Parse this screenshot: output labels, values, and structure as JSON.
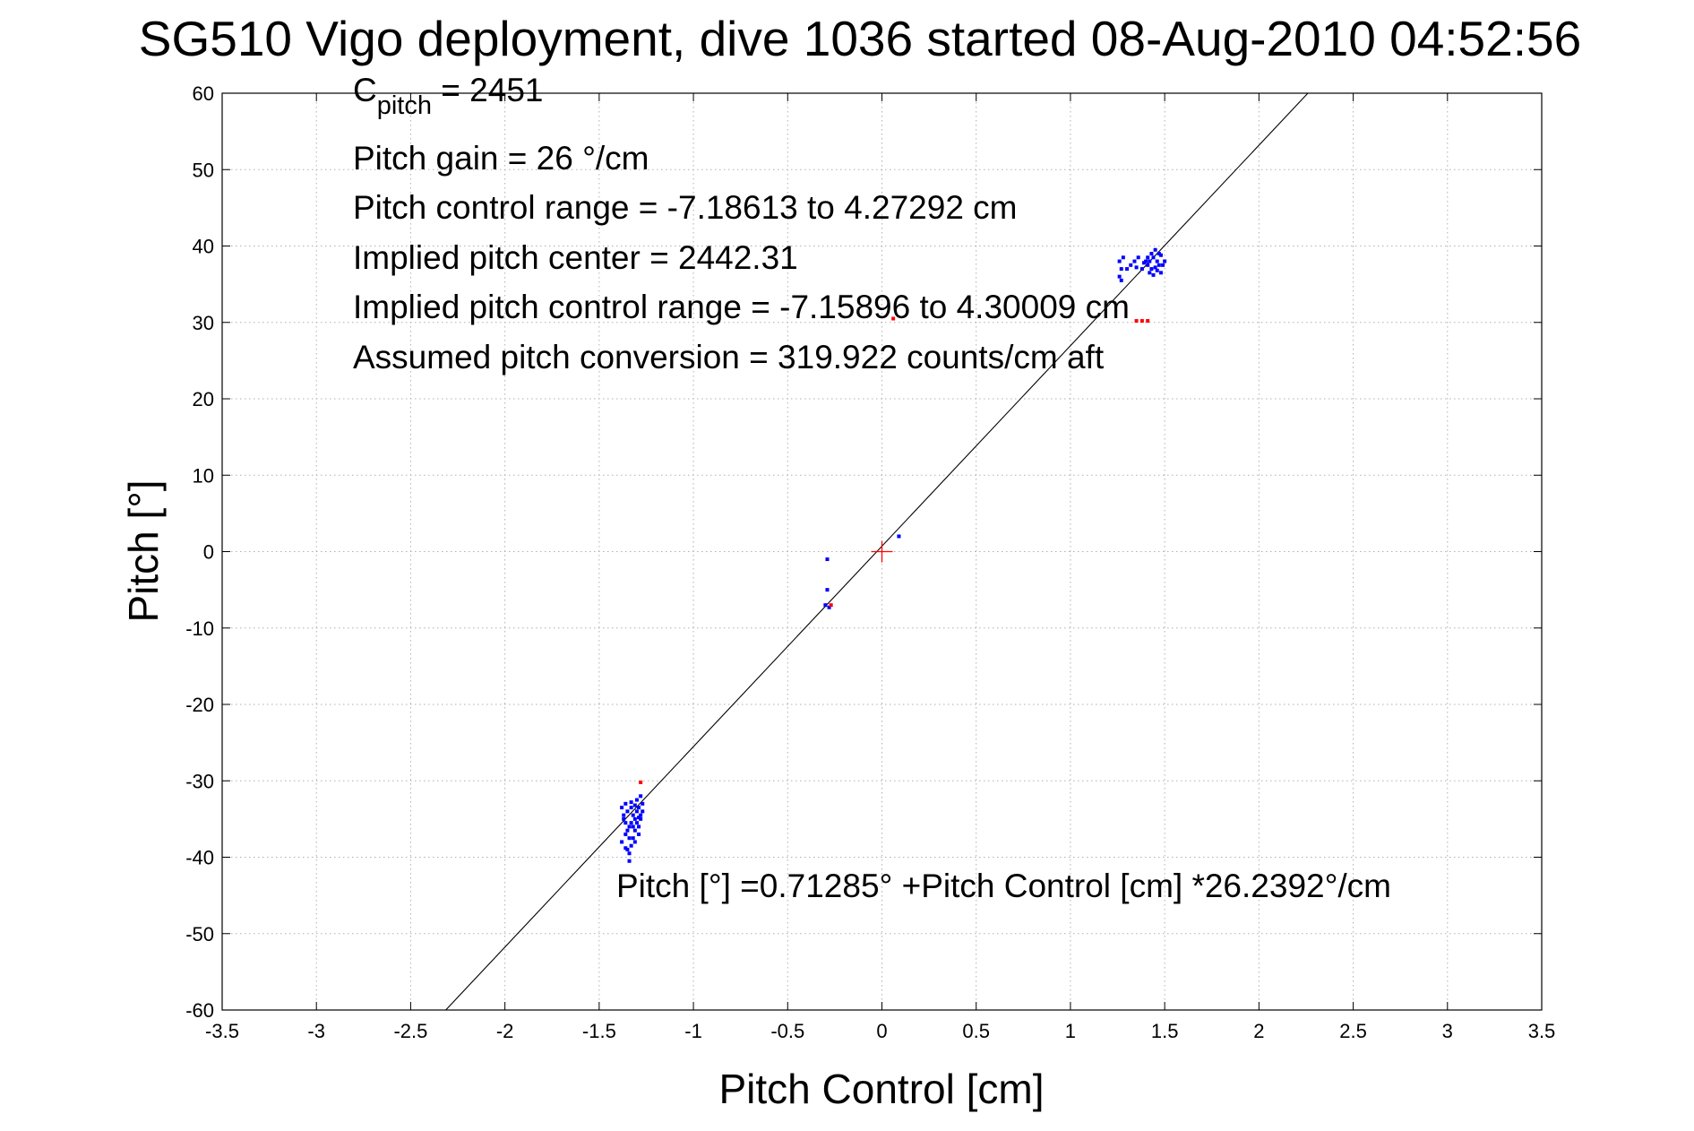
{
  "chart_data": {
    "type": "scatter",
    "title": "SG510 Vigo deployment, dive 1036 started 08-Aug-2010 04:52:56",
    "xlabel": "Pitch Control [cm]",
    "ylabel": "Pitch [°]",
    "xlim": [
      -3.5,
      3.5
    ],
    "ylim": [
      -60,
      60
    ],
    "x_ticks": [
      -3.5,
      -3,
      -2.5,
      -2,
      -1.5,
      -1,
      -0.5,
      0,
      0.5,
      1,
      1.5,
      2,
      2.5,
      3,
      3.5
    ],
    "x_tick_labels": [
      "-3.5",
      "-3",
      "-2.5",
      "-2",
      "-1.5",
      "-1",
      "-0.5",
      "0",
      "0.5",
      "1",
      "1.5",
      "2",
      "2.5",
      "3",
      "3.5"
    ],
    "y_ticks": [
      60,
      50,
      40,
      30,
      20,
      10,
      0,
      -10,
      -20,
      -30,
      -40,
      -50,
      -60
    ],
    "y_tick_labels": [
      "60",
      "50",
      "40",
      "30",
      "20",
      "10",
      "0",
      "-10",
      "-20",
      "-30",
      "-40",
      "-50",
      "-60"
    ],
    "grid": true,
    "annotations": {
      "c_pitch_main": "C",
      "c_pitch_sub": "pitch",
      "c_pitch_value": " = 2451",
      "pitch_gain": "Pitch gain = 26 °/cm",
      "pitch_control_range": "Pitch control range = -7.18613 to 4.27292 cm",
      "implied_center": "Implied pitch center = 2442.31",
      "implied_range": "Implied pitch control range = -7.15896 to 4.30009 cm",
      "assumed_conversion": "Assumed pitch conversion = 319.922 counts/cm aft",
      "fit_equation": "Pitch [°] =0.71285° +Pitch Control [cm] *26.2392°/cm"
    },
    "fit_line": {
      "intercept": 0.71285,
      "slope": 26.2392,
      "color": "#000000"
    },
    "center_marker": {
      "x": 0,
      "y": 0,
      "color": "#ff0000"
    },
    "series": [
      {
        "color": "#0000ff",
        "points": [
          [
            -1.36,
            -33
          ],
          [
            -1.35,
            -34
          ],
          [
            -1.37,
            -35
          ],
          [
            -1.34,
            -36
          ],
          [
            -1.36,
            -37
          ],
          [
            -1.38,
            -38
          ],
          [
            -1.35,
            -39
          ],
          [
            -1.34,
            -40.5
          ],
          [
            -1.33,
            -33.5
          ],
          [
            -1.32,
            -34.5
          ],
          [
            -1.33,
            -35.5
          ],
          [
            -1.31,
            -36.5
          ],
          [
            -1.32,
            -37.5
          ],
          [
            -1.33,
            -38.5
          ],
          [
            -1.3,
            -32.5
          ],
          [
            -1.29,
            -33.5
          ],
          [
            -1.3,
            -34
          ],
          [
            -1.31,
            -35
          ],
          [
            -1.29,
            -36
          ],
          [
            -1.28,
            -34.5
          ],
          [
            -1.27,
            -33
          ],
          [
            -1.28,
            -32
          ],
          [
            -1.29,
            -37
          ],
          [
            -1.31,
            -38
          ],
          [
            -1.35,
            -36.5
          ],
          [
            -1.37,
            -34.5
          ],
          [
            -1.36,
            -35.5
          ],
          [
            -1.34,
            -37.5
          ],
          [
            -1.32,
            -36
          ],
          [
            -1.3,
            -35.5
          ],
          [
            -1.28,
            -35
          ],
          [
            -1.27,
            -34
          ],
          [
            -1.38,
            -33.5
          ],
          [
            -1.33,
            -32.8
          ],
          [
            -1.31,
            -33.2
          ],
          [
            -1.36,
            -38.8
          ],
          [
            -1.34,
            -39.5
          ],
          [
            -1.29,
            -34.8
          ],
          [
            1.26,
            38
          ],
          [
            1.27,
            37
          ],
          [
            1.26,
            36
          ],
          [
            1.28,
            38.5
          ],
          [
            1.27,
            35.5
          ],
          [
            1.3,
            37
          ],
          [
            1.32,
            37.5
          ],
          [
            1.34,
            38
          ],
          [
            1.36,
            38.5
          ],
          [
            1.38,
            37
          ],
          [
            1.4,
            38
          ],
          [
            1.41,
            37.5
          ],
          [
            1.42,
            36.5
          ],
          [
            1.43,
            37
          ],
          [
            1.44,
            38.5
          ],
          [
            1.45,
            39.5
          ],
          [
            1.46,
            38
          ],
          [
            1.47,
            37.5
          ],
          [
            1.48,
            38.8
          ],
          [
            1.49,
            37.5
          ],
          [
            1.5,
            38
          ],
          [
            1.43,
            39
          ],
          [
            1.41,
            38.5
          ],
          [
            1.44,
            36.2
          ],
          [
            1.46,
            36.8
          ],
          [
            1.39,
            37.8
          ],
          [
            1.35,
            37.2
          ],
          [
            1.45,
            37.2
          ],
          [
            1.47,
            39
          ],
          [
            1.42,
            38
          ],
          [
            1.48,
            36.5
          ],
          [
            -0.29,
            -1
          ],
          [
            -0.29,
            -5
          ],
          [
            -0.3,
            -7
          ],
          [
            -0.28,
            -7.3
          ],
          [
            0.09,
            2
          ]
        ]
      },
      {
        "color": "#ff0000",
        "points": [
          [
            -1.28,
            -30.2
          ],
          [
            -0.27,
            -7
          ],
          [
            1.35,
            30.2
          ],
          [
            1.38,
            30.2
          ],
          [
            1.41,
            30.2
          ],
          [
            0.06,
            30.5
          ]
        ]
      }
    ]
  }
}
